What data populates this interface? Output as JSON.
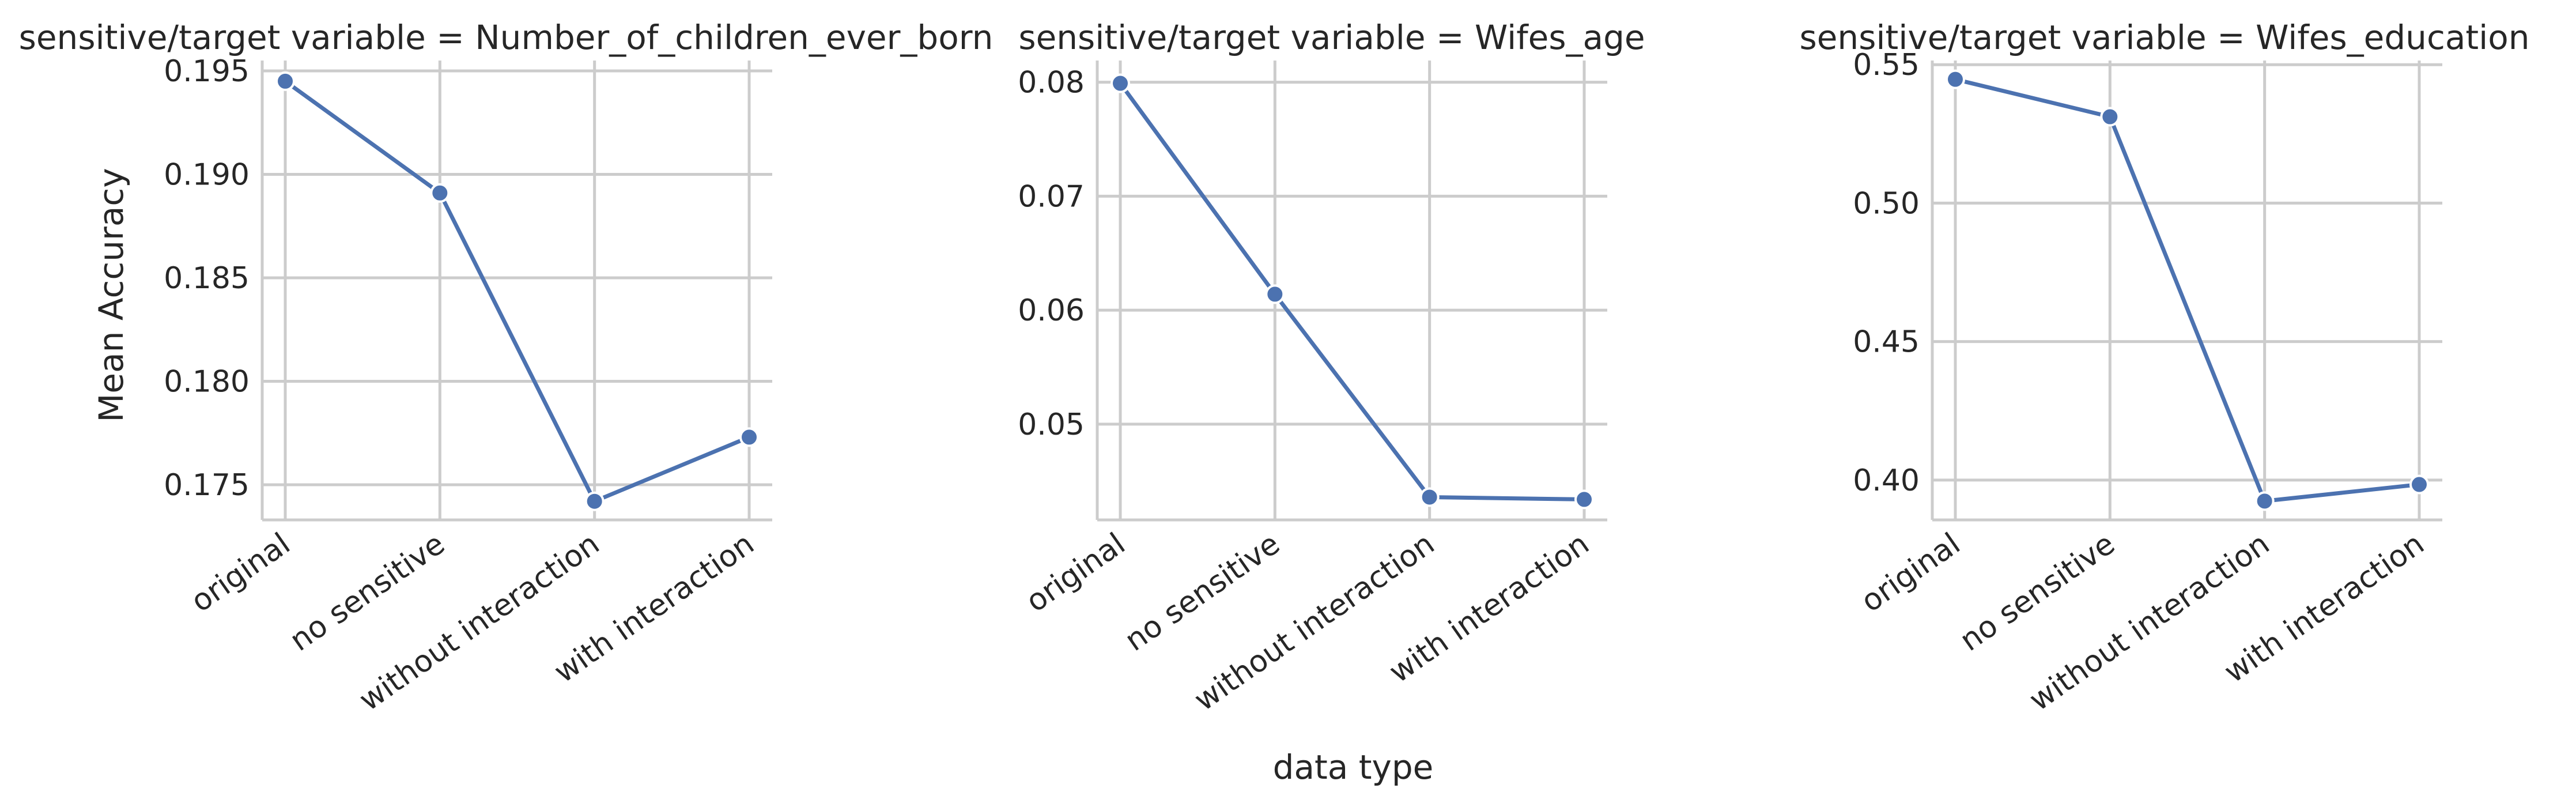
{
  "chart_data": {
    "type": "line",
    "xlabel": "data type",
    "ylabel": "Mean Accuracy",
    "categories": [
      "original",
      "no sensitive",
      "without interaction",
      "with interaction"
    ],
    "line_color": "#4c72b0",
    "grid": true,
    "panels": [
      {
        "title": "sensitive/target variable = Number_of_children_ever_born",
        "values": [
          0.1945,
          0.1891,
          0.1742,
          0.1773
        ],
        "ylim": [
          0.1733,
          0.1955
        ],
        "yticks": [
          0.175,
          0.18,
          0.185,
          0.19,
          0.195
        ],
        "ytick_labels": [
          "0.175",
          "0.180",
          "0.185",
          "0.190",
          "0.195"
        ]
      },
      {
        "title": "sensitive/target variable = Wifes_age",
        "values": [
          0.0799,
          0.0614,
          0.0436,
          0.0434
        ],
        "ylim": [
          0.0416,
          0.0819
        ],
        "yticks": [
          0.05,
          0.06,
          0.07,
          0.08
        ],
        "ytick_labels": [
          "0.05",
          "0.06",
          "0.07",
          "0.08"
        ]
      },
      {
        "title": "sensitive/target variable = Wifes_education",
        "values": [
          0.5447,
          0.5312,
          0.3924,
          0.3984
        ],
        "ylim": [
          0.3856,
          0.5515
        ],
        "yticks": [
          0.4,
          0.45,
          0.5,
          0.55
        ],
        "ytick_labels": [
          "0.40",
          "0.45",
          "0.50",
          "0.55"
        ]
      }
    ]
  }
}
